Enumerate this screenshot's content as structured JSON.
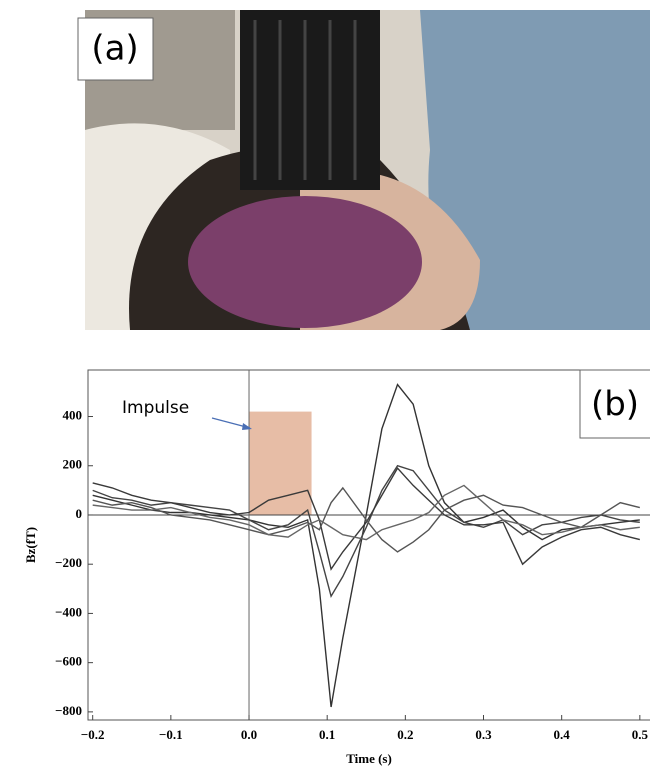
{
  "photo_label": "(a)",
  "chart_data": {
    "type": "line",
    "panel_label": "(b)",
    "xlabel": "Time (s)",
    "ylabel": "Bz(fT)",
    "annotation": "Impulse",
    "impulse": {
      "x": [
        0,
        0.08
      ],
      "height": 420,
      "color": "#e3b197"
    },
    "x": [
      -0.2,
      -0.175,
      -0.15,
      -0.125,
      -0.1,
      -0.075,
      -0.05,
      -0.025,
      0,
      0.025,
      0.05,
      0.075,
      0.09,
      0.105,
      0.12,
      0.15,
      0.17,
      0.19,
      0.21,
      0.23,
      0.25,
      0.275,
      0.3,
      0.325,
      0.35,
      0.375,
      0.4,
      0.425,
      0.45,
      0.475,
      0.5
    ],
    "series": [
      {
        "color": "#333333",
        "values": [
          80,
          60,
          40,
          20,
          10,
          10,
          0,
          -10,
          -20,
          -40,
          -50,
          -20,
          -300,
          -780,
          -500,
          0,
          350,
          530,
          450,
          200,
          50,
          -30,
          -10,
          20,
          -50,
          -100,
          -60,
          -50,
          -40,
          -30,
          -20
        ]
      },
      {
        "color": "#444444",
        "values": [
          100,
          70,
          60,
          40,
          50,
          40,
          30,
          20,
          -20,
          -60,
          -40,
          20,
          -150,
          -330,
          -250,
          -50,
          100,
          200,
          180,
          100,
          20,
          -30,
          -50,
          -20,
          -80,
          -40,
          -30,
          -10,
          0,
          -20,
          -30
        ]
      },
      {
        "color": "#3a3a3a",
        "values": [
          130,
          110,
          80,
          60,
          50,
          30,
          10,
          0,
          10,
          60,
          80,
          100,
          -20,
          -220,
          -150,
          -30,
          80,
          190,
          120,
          60,
          0,
          -40,
          -40,
          -30,
          -200,
          -130,
          -90,
          -60,
          -50,
          -80,
          -100
        ]
      },
      {
        "color": "#555555",
        "values": [
          60,
          40,
          50,
          30,
          0,
          -10,
          -20,
          -40,
          -60,
          -80,
          -60,
          -30,
          -60,
          50,
          110,
          -20,
          -100,
          -150,
          -110,
          -60,
          20,
          60,
          80,
          40,
          30,
          0,
          -30,
          -50,
          0,
          50,
          30
        ]
      },
      {
        "color": "#666666",
        "values": [
          40,
          30,
          20,
          20,
          30,
          10,
          -10,
          -20,
          -40,
          -80,
          -90,
          -40,
          -20,
          -50,
          -80,
          -100,
          -60,
          -40,
          -20,
          10,
          80,
          120,
          50,
          -20,
          -40,
          -80,
          -70,
          -50,
          -40,
          -60,
          -50
        ]
      }
    ],
    "xlim": [
      -0.206,
      0.513
    ],
    "ylim": [
      -833,
      589
    ],
    "xticks": [
      {
        "value": -0.2,
        "label": "−0.2"
      },
      {
        "value": -0.1,
        "label": "−0.1"
      },
      {
        "value": 0,
        "label": "0.0"
      },
      0.1,
      0.2,
      0.3,
      0.4,
      0.5
    ],
    "yticks": [
      {
        "value": -800,
        "label": "−800"
      },
      {
        "value": -600,
        "label": "−600"
      },
      {
        "value": -400,
        "label": "−400"
      },
      {
        "value": -200,
        "label": "−200"
      },
      0,
      200,
      400
    ]
  }
}
